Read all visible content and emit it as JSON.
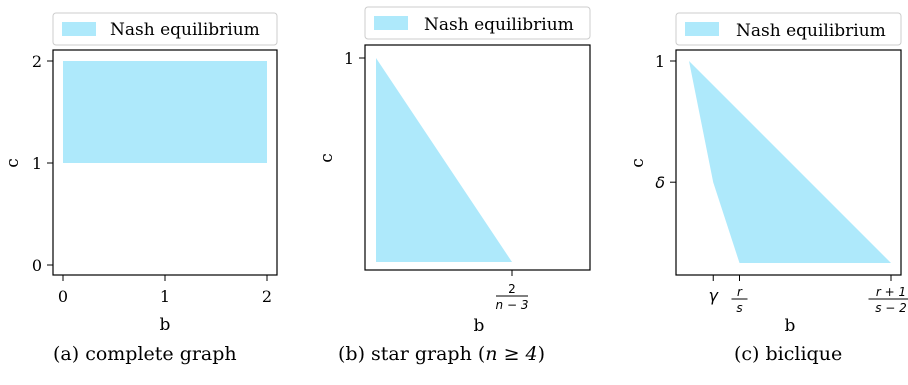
{
  "chart_data": [
    {
      "type": "area",
      "legend": [
        "Nash equilibrium"
      ],
      "legend_position": "top",
      "xlabel": "b",
      "ylabel": "c",
      "x_ticks": [
        "0",
        "1",
        "2"
      ],
      "y_ticks": [
        "0",
        "1",
        "2"
      ],
      "xlim": [
        -0.1,
        2.1
      ],
      "ylim": [
        -0.1,
        2.1
      ],
      "region": [
        [
          0,
          1
        ],
        [
          2,
          1
        ],
        [
          2,
          2
        ],
        [
          0,
          2
        ]
      ],
      "caption": "(a) complete graph",
      "color": "#aee9fb"
    },
    {
      "type": "area",
      "legend": [
        "Nash equilibrium"
      ],
      "legend_position": "top",
      "xlabel": "b",
      "ylabel": "c",
      "x_ticks": [
        {
          "label_num": "2",
          "label_den": "n − 3",
          "value": 2
        }
      ],
      "y_ticks": [
        {
          "label": "1",
          "value": 1
        }
      ],
      "region": [
        [
          0,
          1
        ],
        [
          0,
          0
        ],
        [
          2,
          0
        ]
      ],
      "caption_prefix": "(b) star graph (",
      "caption_math": "n ≥ 4",
      "caption_suffix": ")",
      "color": "#aee9fb"
    },
    {
      "type": "area",
      "legend": [
        "Nash equilibrium"
      ],
      "legend_position": "top",
      "xlabel": "b",
      "ylabel": "c",
      "x_ticks": [
        {
          "label": "γ",
          "value": 0.12
        },
        {
          "label_num": "r",
          "label_den": "s",
          "value": 0.25
        },
        {
          "label_num": "r + 1",
          "label_den": "s − 2",
          "value": 1
        }
      ],
      "y_ticks": [
        {
          "label": "1",
          "value": 1
        },
        {
          "label": "δ",
          "value": 0.4
        }
      ],
      "region": [
        [
          0,
          1
        ],
        [
          0.12,
          0.4
        ],
        [
          0.25,
          0
        ],
        [
          1,
          0
        ]
      ],
      "caption": "(c) biclique",
      "color": "#aee9fb"
    }
  ]
}
